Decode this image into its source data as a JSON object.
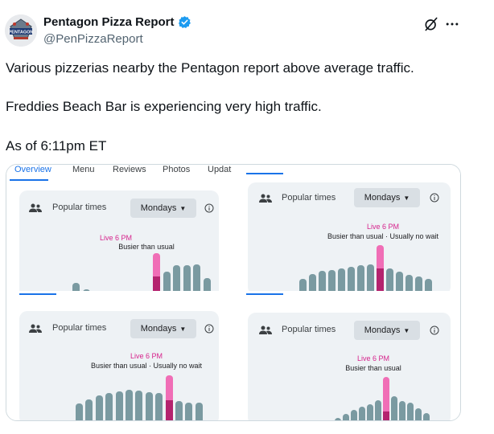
{
  "tweet": {
    "display_name": "Pentagon Pizza Report",
    "handle": "@PenPizzaReport",
    "avatar_text": "PENTAGON",
    "line1": "Various pizzerias nearby the Pentagon report above average traffic.",
    "line2": "Freddies Beach Bar is experiencing very high traffic.",
    "line3": "As of 6:11pm ET"
  },
  "icons": {
    "verified": "verified-badge-icon",
    "grok": "grok-icon",
    "more": "more-icon"
  },
  "colors": {
    "accent": "#1a73e8",
    "live": "#d6238c",
    "live_bar": "#f06eb6",
    "live_fill": "#b4236e",
    "bar": "#7a9aa1",
    "verified": "#1d9bf0"
  },
  "tabs": [
    "Overview",
    "Menu",
    "Reviews",
    "Photos",
    "Updat"
  ],
  "panels": [
    {
      "popular_label": "Popular times",
      "day": "Mondays",
      "live": "Live 6 PM",
      "status": "Busier than usual",
      "bars": [
        0,
        0,
        0,
        0,
        0.32,
        0.16,
        0.05,
        0,
        0,
        0.05,
        0.05,
        0.12,
        1.0,
        0.58,
        0.72,
        0.73,
        0.75,
        0.42
      ],
      "live_index": 12,
      "live_usual": 0.46
    },
    {
      "popular_label": "Popular times",
      "day": "Mondays",
      "live": "Live 6 PM",
      "status": "Busier than usual · Usually no wait",
      "bars": [
        0.3,
        0.4,
        0.46,
        0.49,
        0.52,
        0.55,
        0.58,
        0.6,
        1.0,
        0.52,
        0.45,
        0.38,
        0.35,
        0.3
      ],
      "live_index": 8,
      "live_usual": 0.52
    },
    {
      "popular_label": "Popular times",
      "day": "Mondays",
      "live": "Live 6 PM",
      "status": "Busier than usual · Usually no wait",
      "bars": [
        0.38,
        0.47,
        0.55,
        0.6,
        0.64,
        0.68,
        0.66,
        0.62,
        0.6,
        1.0,
        0.42,
        0.4,
        0.4
      ],
      "live_index": 9,
      "live_usual": 0.44
    },
    {
      "popular_label": "Popular times",
      "day": "Mondays",
      "live": "Live 6 PM",
      "status": "Busier than usual",
      "bars": [
        0.12,
        0.2,
        0.3,
        0.36,
        0.42,
        0.5,
        1.0,
        0.58,
        0.48,
        0.44,
        0.32,
        0.22
      ],
      "live_index": 6,
      "live_usual": 0.26
    }
  ]
}
